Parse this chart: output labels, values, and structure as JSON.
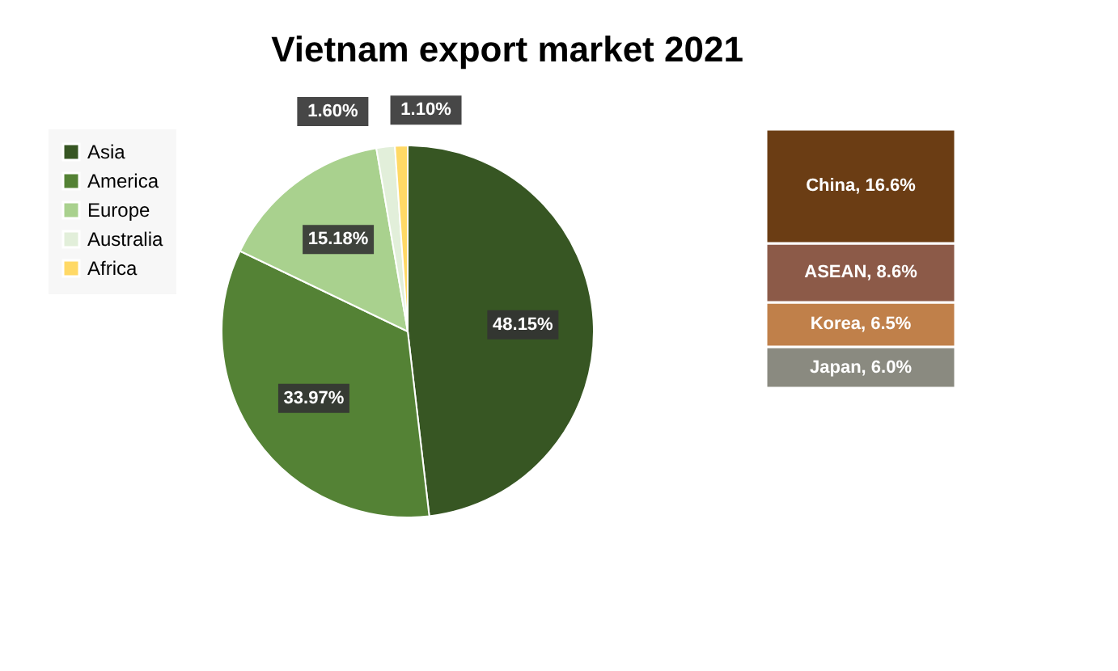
{
  "chart_data": [
    {
      "type": "pie",
      "title": "Vietnam export market 2021",
      "categories": [
        "Asia",
        "America",
        "Europe",
        "Australia",
        "Africa"
      ],
      "values": [
        48.15,
        33.97,
        15.18,
        1.6,
        1.1
      ],
      "colors": [
        "#375623",
        "#548235",
        "#a9d18e",
        "#e2efda",
        "#ffd966"
      ],
      "value_labels": [
        "48.15%",
        "33.97%",
        "15.18%",
        "1.60%",
        "1.10%"
      ],
      "legend": "left"
    },
    {
      "type": "bar",
      "stacked": true,
      "categories": [
        null
      ],
      "series": [
        {
          "color": "#8a8a80",
          "values": [
            6.0
          ],
          "value_labels": [
            "Japan, 6.0%"
          ]
        },
        {
          "color": "#c0804a",
          "values": [
            6.5
          ],
          "value_labels": [
            "Korea, 6.5%"
          ]
        },
        {
          "color": "#8c5a48",
          "values": [
            8.6
          ],
          "value_labels": [
            "ASEAN, 8.6%"
          ]
        },
        {
          "color": "#6b3d14",
          "values": [
            16.6
          ],
          "value_labels": [
            "China, 16.6%"
          ]
        }
      ]
    }
  ]
}
